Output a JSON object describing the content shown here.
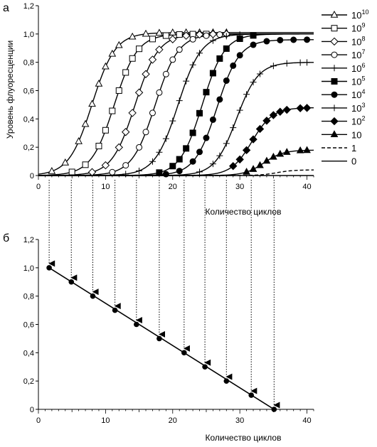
{
  "chart_data": [
    {
      "panel_label": "а",
      "type": "line",
      "title": "",
      "ylabel": "Уровень флуоресценции",
      "xlabel": "Количество циклов",
      "xlim": [
        0,
        41
      ],
      "ylim": [
        0,
        1.2
      ],
      "x_ticks": [
        0,
        10,
        20,
        30,
        40
      ],
      "y_ticks": [
        "0",
        "0,2",
        "0,4",
        "0,6",
        "0,8",
        "1,0",
        "1,2"
      ],
      "grid": false,
      "legend_position": "right",
      "series": [
        {
          "label_base": "10",
          "label_exp": "10",
          "marker": "triangle-open",
          "plateau": 1.01,
          "midpoint": 8.0,
          "steepness": 0.58,
          "marker_x": [
            2,
            4,
            6,
            7,
            8,
            9,
            10,
            11,
            12,
            14,
            16,
            18,
            20,
            22,
            24,
            26,
            28
          ]
        },
        {
          "label_base": "10",
          "label_exp": "9",
          "marker": "square-open",
          "plateau": 1.0,
          "midpoint": 11.3,
          "steepness": 0.58,
          "marker_x": [
            5,
            7,
            9,
            10,
            11,
            12,
            13,
            14,
            15,
            17,
            19,
            21,
            23,
            25
          ]
        },
        {
          "label_base": "10",
          "label_exp": "8",
          "marker": "diamond-open",
          "plateau": 1.0,
          "midpoint": 14.4,
          "steepness": 0.58,
          "marker_x": [
            8,
            10,
            12,
            13,
            14,
            15,
            16,
            17,
            18,
            20,
            22,
            24,
            26,
            28
          ]
        },
        {
          "label_base": "10",
          "label_exp": "7",
          "marker": "circle-open",
          "plateau": 1.0,
          "midpoint": 17.4,
          "steepness": 0.58,
          "marker_x": [
            11,
            13,
            15,
            16,
            17,
            18,
            19,
            20,
            21,
            23,
            25,
            27
          ]
        },
        {
          "label_base": "10",
          "label_exp": "6",
          "marker": "plus",
          "plateau": 1.0,
          "midpoint": 20.8,
          "steepness": 0.58,
          "marker_x": [
            13,
            15,
            17,
            18,
            19,
            20,
            21,
            22,
            23,
            24,
            26,
            28,
            30
          ]
        },
        {
          "label_base": "10",
          "label_exp": "5",
          "marker": "square-filled",
          "plateau": 1.0,
          "midpoint": 24.4,
          "steepness": 0.6,
          "marker_x": [
            18,
            20,
            21,
            22,
            23,
            24,
            25,
            26,
            27,
            28,
            30,
            32
          ]
        },
        {
          "label_base": "10",
          "label_exp": "4",
          "marker": "circle-filled",
          "plateau": 0.96,
          "midpoint": 26.6,
          "steepness": 0.6,
          "marker_x": [
            19,
            21,
            23,
            24,
            25,
            26,
            27,
            28,
            29,
            30,
            32,
            34,
            36,
            38,
            40
          ]
        },
        {
          "label_base": "10",
          "label_exp": "3",
          "marker": "plus",
          "plateau": 0.8,
          "midpoint": 29.5,
          "steepness": 0.62,
          "marker_x": [
            24,
            26,
            27,
            28,
            29,
            30,
            31,
            32,
            33,
            35,
            37,
            39,
            40
          ]
        },
        {
          "label_base": "10",
          "label_exp": "2",
          "marker": "diamond-filled",
          "plateau": 0.48,
          "midpoint": 31.8,
          "steepness": 0.65,
          "marker_x": [
            29,
            30,
            31,
            32,
            33,
            34,
            35,
            36,
            37,
            39,
            40
          ]
        },
        {
          "label_base": "10",
          "label_exp": "",
          "marker": "triangle-filled",
          "plateau": 0.18,
          "midpoint": 33.6,
          "steepness": 0.7,
          "marker_x": [
            31,
            32,
            33,
            34,
            35,
            36,
            37,
            39,
            40
          ]
        },
        {
          "label_base": "1",
          "label_exp": "",
          "marker": "none",
          "line_style": "dashed",
          "plateau": 0.04,
          "midpoint": 35.5,
          "steepness": 0.8,
          "marker_x": []
        },
        {
          "label_base": "0",
          "label_exp": "",
          "marker": "none",
          "line_style": "solid",
          "plateau": 0.0,
          "midpoint": 30,
          "steepness": 0.5,
          "marker_x": []
        }
      ],
      "threshold_crossings": [
        1.6,
        4.9,
        8.1,
        11.4,
        14.6,
        18.0,
        21.7,
        24.8,
        28.0,
        31.7,
        35.1
      ]
    },
    {
      "panel_label": "б",
      "type": "line",
      "title": "",
      "ylabel": "",
      "xlabel": "Количество циклов",
      "xlim": [
        0,
        41
      ],
      "ylim": [
        0,
        1.2
      ],
      "x_ticks": [
        0,
        10,
        20,
        30,
        40
      ],
      "y_ticks": [
        "0",
        "0,2",
        "0,4",
        "0,6",
        "0,8",
        "1,0",
        "1,2"
      ],
      "grid": false,
      "points": [
        {
          "x": 1.6,
          "y": 1.0
        },
        {
          "x": 4.9,
          "y": 0.9
        },
        {
          "x": 8.1,
          "y": 0.8
        },
        {
          "x": 11.4,
          "y": 0.7
        },
        {
          "x": 14.6,
          "y": 0.6
        },
        {
          "x": 18.0,
          "y": 0.5
        },
        {
          "x": 21.7,
          "y": 0.4
        },
        {
          "x": 24.8,
          "y": 0.3
        },
        {
          "x": 28.0,
          "y": 0.2
        },
        {
          "x": 31.7,
          "y": 0.1
        },
        {
          "x": 35.1,
          "y": 0.0
        }
      ]
    }
  ]
}
